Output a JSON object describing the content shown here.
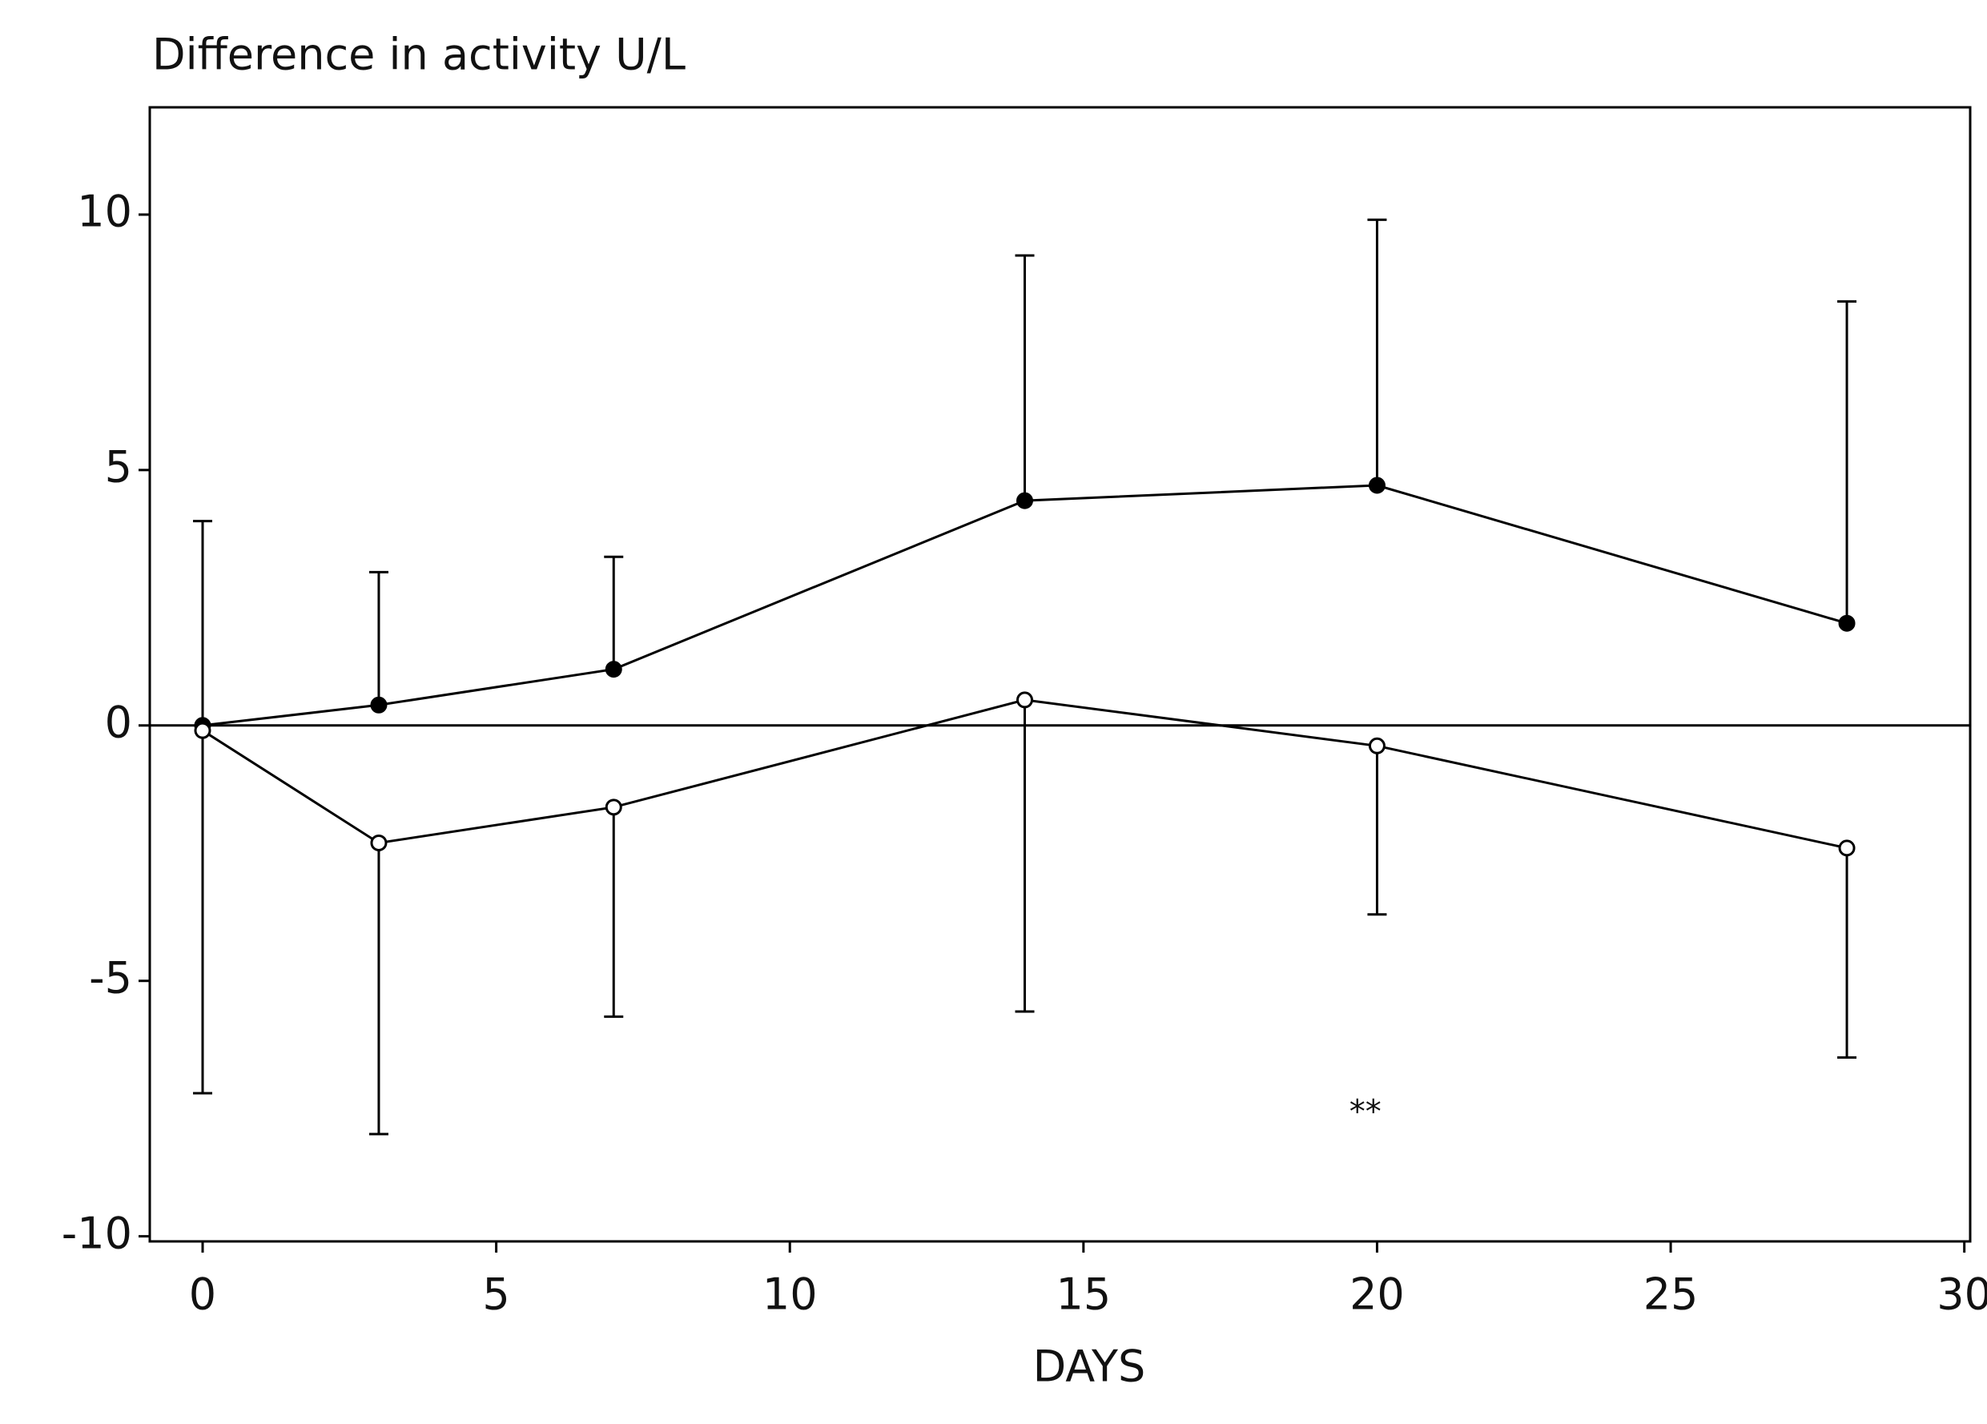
{
  "chart_data": {
    "type": "line",
    "title": "Difference in activity U/L",
    "x_label": "DAYS",
    "x": [
      0,
      3,
      7,
      14,
      20,
      28
    ],
    "series": [
      {
        "color": "#000000",
        "marker": "filled",
        "error_direction": "up",
        "values": [
          0,
          0.4,
          1.1,
          4.4,
          4.7,
          2.0
        ],
        "errors": [
          4,
          2.6,
          2.2,
          4.8,
          5.2,
          6.3
        ]
      },
      {
        "color": "#000000",
        "marker": "open",
        "error_direction": "down",
        "values": [
          -0.1,
          -2.3,
          -1.6,
          0.5,
          -0.4,
          -2.4
        ],
        "errors": [
          7.1,
          5.7,
          4.1,
          6.1,
          3.3,
          4.1
        ]
      }
    ],
    "xlim": [
      -0.9,
      30.1
    ],
    "ylim": [
      -10.1,
      12.1
    ],
    "xticks": [
      0,
      5,
      10,
      15,
      20,
      25,
      30
    ],
    "yticks": [
      -10,
      -5,
      0,
      5,
      10
    ],
    "reference_line": 0,
    "annotation": {
      "text": "**",
      "x": 19.8,
      "y": -7.6
    },
    "grid": false
  }
}
